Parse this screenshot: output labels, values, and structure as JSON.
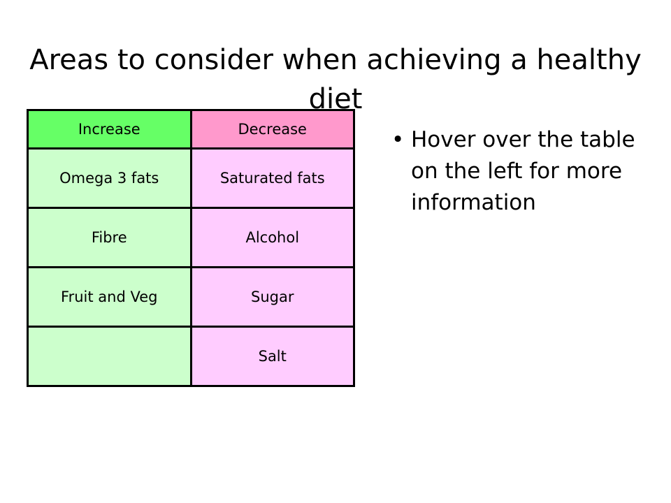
{
  "slide": {
    "title": "Areas to consider when achieving a healthy diet"
  },
  "table": {
    "headers": [
      "Increase",
      "Decrease"
    ],
    "rows": [
      [
        "Omega 3 fats",
        "Saturated fats"
      ],
      [
        "Fibre",
        "Alcohol"
      ],
      [
        "Fruit and Veg",
        "Sugar"
      ],
      [
        "",
        "Salt"
      ]
    ]
  },
  "bullets": [
    {
      "symbol": "•",
      "text": "Hover over the table on the left for more information"
    }
  ],
  "colors": {
    "increase_header": "#66ff66",
    "decrease_header": "#ff99cc",
    "increase_cell": "#ccffcc",
    "decrease_cell": "#ffccff"
  }
}
